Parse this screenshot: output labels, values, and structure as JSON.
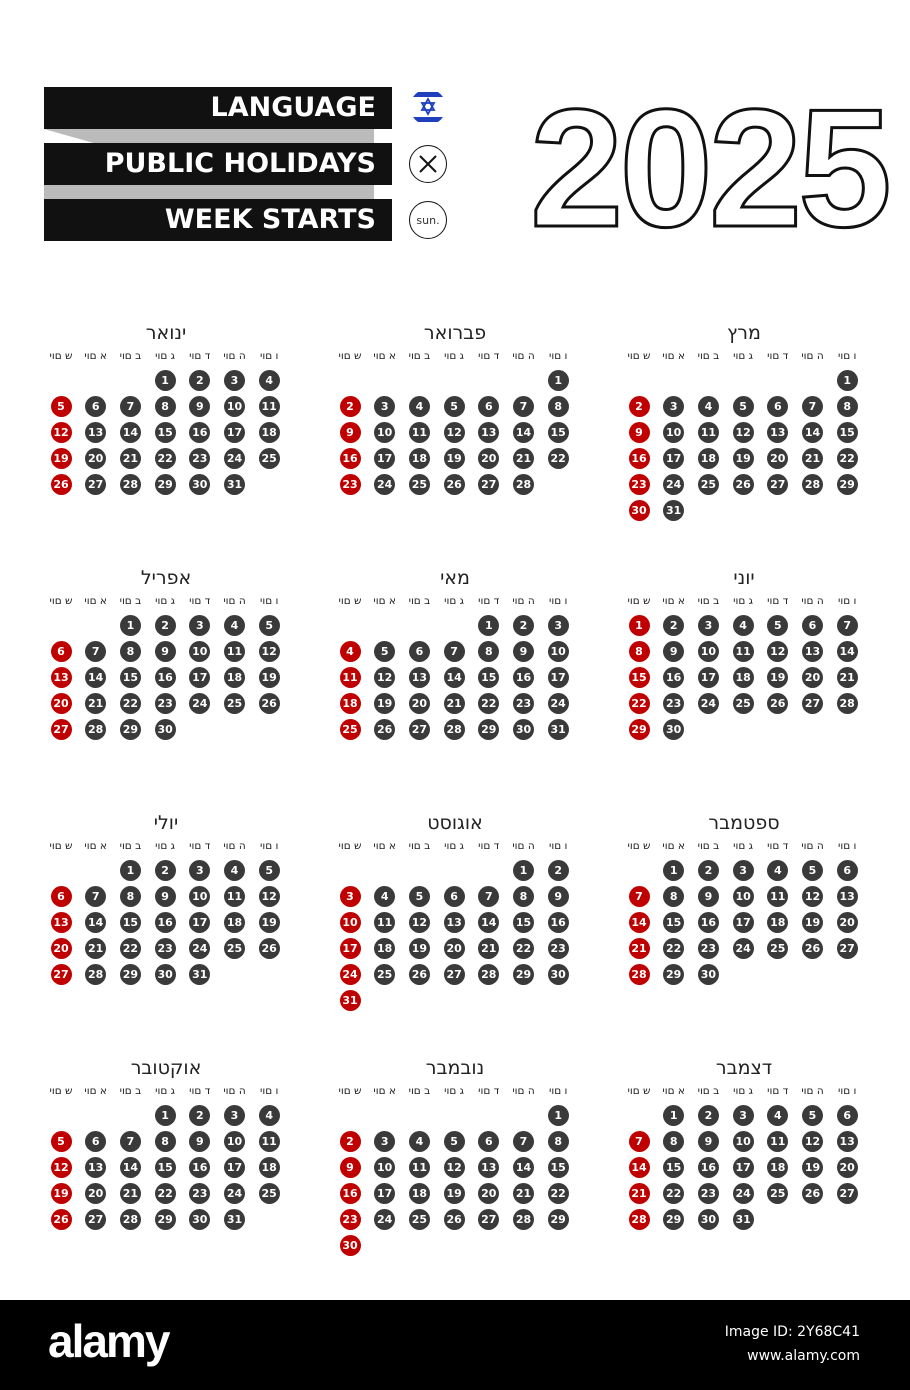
{
  "legend": {
    "language_label": "LANGUAGE",
    "holidays_label": "PUBLIC HOLIDAYS",
    "week_starts_label": "WEEK STARTS",
    "language_icon": "israel-flag-icon",
    "holidays_icon": "x-circle-icon",
    "week_starts_value": "sun."
  },
  "year": "2025",
  "weekday_headers": [
    "יום ש",
    "יום א",
    "יום ב",
    "יום ג",
    "יום ד",
    "יום ה",
    "יום ו"
  ],
  "colors": {
    "day": "#3a3a3a",
    "sunday": "#c00000"
  },
  "months": [
    {
      "name": "ינואר",
      "start_weekday": 3,
      "days": 31
    },
    {
      "name": "פברואר",
      "start_weekday": 6,
      "days": 28
    },
    {
      "name": "מרץ",
      "start_weekday": 6,
      "days": 31
    },
    {
      "name": "אפריל",
      "start_weekday": 2,
      "days": 30
    },
    {
      "name": "מאי",
      "start_weekday": 4,
      "days": 31
    },
    {
      "name": "יוני",
      "start_weekday": 0,
      "days": 30
    },
    {
      "name": "יולי",
      "start_weekday": 2,
      "days": 31
    },
    {
      "name": "אוגוסט",
      "start_weekday": 5,
      "days": 31
    },
    {
      "name": "ספטמבר",
      "start_weekday": 1,
      "days": 30
    },
    {
      "name": "אוקטובר",
      "start_weekday": 3,
      "days": 31
    },
    {
      "name": "נובמבר",
      "start_weekday": 6,
      "days": 30
    },
    {
      "name": "דצמבר",
      "start_weekday": 1,
      "days": 31
    }
  ],
  "footer": {
    "logo": "alamy",
    "image_id": "Image ID: 2Y68C41",
    "url": "www.alamy.com"
  }
}
